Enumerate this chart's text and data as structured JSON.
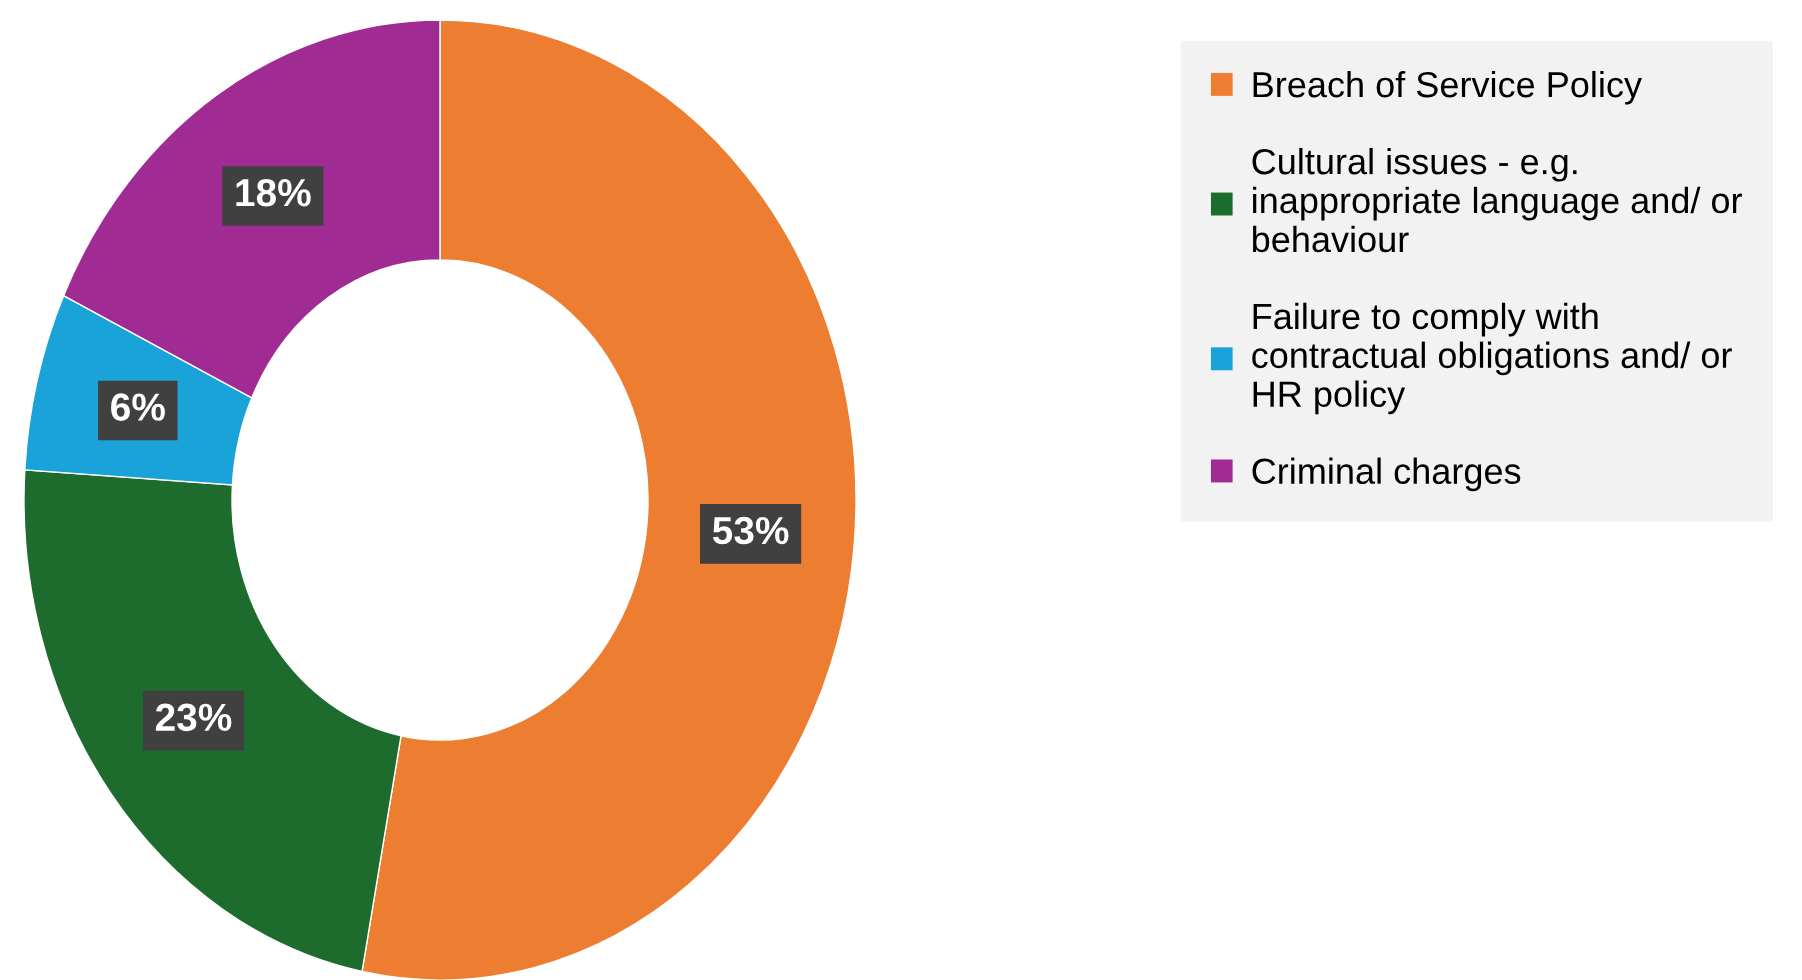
{
  "chart_data": {
    "type": "donut",
    "categories": [
      "Breach of Service Policy",
      "Cultural issues - e.g.\ninappropriate language and/ or\nbehaviour",
      "Failure to comply with\ncontractual obligations and/ or\nHR policy",
      "Criminal charges"
    ],
    "values": [
      53,
      23,
      6,
      18
    ],
    "colors": [
      "#ed7d31",
      "#1e6b2e",
      "#1aa3d9",
      "#a02b93"
    ],
    "value_labels": [
      "53%",
      "23%",
      "6%",
      "18%"
    ],
    "legend": "right"
  }
}
